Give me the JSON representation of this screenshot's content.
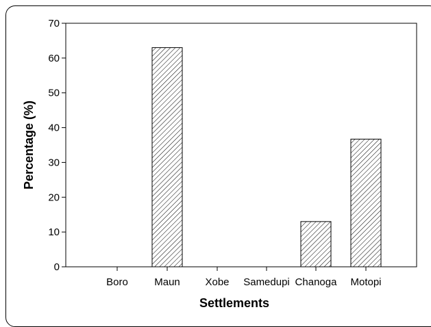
{
  "chart_data": {
    "type": "bar",
    "title": "",
    "xlabel": "Settlements",
    "ylabel": "Percentage (%)",
    "categories": [
      "Boro",
      "Maun",
      "Xobe",
      "Samedupi",
      "Chanoga",
      "Motopi"
    ],
    "values": [
      0,
      63,
      0,
      0,
      13,
      36.7
    ],
    "ylim": [
      0,
      70
    ],
    "yticks": [
      0,
      10,
      20,
      30,
      40,
      50,
      60,
      70
    ],
    "grid": false,
    "legend": "none",
    "bar_pattern": "diagonal-hatch",
    "colors": {
      "bar_fill": "#ffffff",
      "hatch": "#000000",
      "axis": "#000000"
    }
  }
}
